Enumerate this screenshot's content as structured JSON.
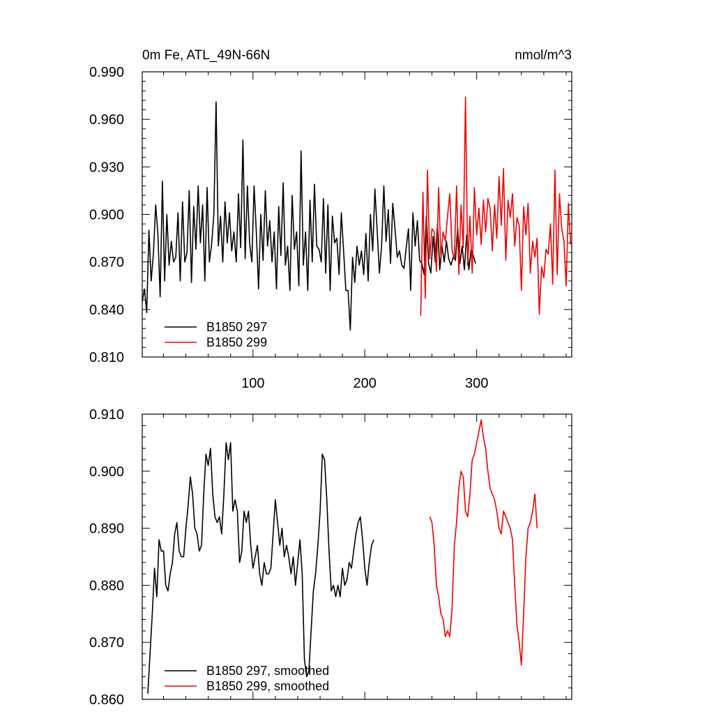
{
  "figure_title": "0m Fe, ATL_49N-66N",
  "units": "nmol/m^3",
  "chart_data": [
    {
      "type": "line",
      "title": "0m Fe, ATL_49N-66N",
      "units": "nmol/m^3",
      "xlim": [
        1,
        385
      ],
      "ylim": [
        0.81,
        0.99
      ],
      "x_ticks": [
        100,
        200,
        300
      ],
      "x_tick_labels": [
        "100",
        "200",
        "300"
      ],
      "y_ticks": [
        0.81,
        0.84,
        0.87,
        0.9,
        0.93,
        0.96,
        0.99
      ],
      "y_tick_labels": [
        "0.810",
        "0.840",
        "0.870",
        "0.900",
        "0.930",
        "0.960",
        "0.990"
      ],
      "legend_position": "bottom-left",
      "series": [
        {
          "name": "B1850 297",
          "color": "#000000",
          "x_start": 1,
          "x_step": 2,
          "values": [
            0.845,
            0.853,
            0.838,
            0.89,
            0.858,
            0.875,
            0.906,
            0.887,
            0.848,
            0.921,
            0.858,
            0.9,
            0.868,
            0.883,
            0.87,
            0.873,
            0.901,
            0.858,
            0.908,
            0.87,
            0.876,
            0.915,
            0.857,
            0.905,
            0.878,
            0.918,
            0.882,
            0.906,
            0.858,
            0.917,
            0.87,
            0.881,
            0.9,
            0.971,
            0.88,
            0.899,
            0.87,
            0.908,
            0.882,
            0.901,
            0.877,
            0.889,
            0.87,
            0.913,
            0.879,
            0.947,
            0.872,
            0.918,
            0.882,
            0.87,
            0.918,
            0.889,
            0.853,
            0.9,
            0.871,
            0.915,
            0.88,
            0.896,
            0.87,
            0.889,
            0.853,
            0.905,
            0.874,
            0.92,
            0.868,
            0.88,
            0.852,
            0.912,
            0.878,
            0.889,
            0.855,
            0.94,
            0.868,
            0.889,
            0.852,
            0.909,
            0.87,
            0.919,
            0.88,
            0.878,
            0.87,
            0.91,
            0.863,
            0.906,
            0.852,
            0.899,
            0.882,
            0.885,
            0.862,
            0.901,
            0.877,
            0.852,
            0.852,
            0.827,
            0.873,
            0.857,
            0.88,
            0.868,
            0.877,
            0.862,
            0.888,
            0.858,
            0.9,
            0.877,
            0.916,
            0.89,
            0.863,
            0.88,
            0.918,
            0.883,
            0.903,
            0.869,
            0.907,
            0.891,
            0.873,
            0.877,
            0.868,
            0.866,
            0.879,
            0.891,
            0.852,
            0.901,
            0.88,
            0.896,
            0.871,
            0.869,
            0.862,
            0.899,
            0.869,
            0.863,
            0.886,
            0.87,
            0.894,
            0.865,
            0.88,
            0.87,
            0.883,
            0.872,
            0.868,
            0.873,
            0.871,
            0.892,
            0.869,
            0.88,
            0.865,
            0.887,
            0.865,
            0.878,
            0.874,
            0.869
          ]
        },
        {
          "name": "B1850 299",
          "color": "#ee0000",
          "x_start": 250,
          "x_step": 2,
          "values": [
            0.836,
            0.914,
            0.847,
            0.928,
            0.872,
            0.891,
            0.889,
            0.864,
            0.917,
            0.873,
            0.889,
            0.883,
            0.899,
            0.913,
            0.877,
            0.872,
            0.918,
            0.862,
            0.906,
            0.879,
            0.974,
            0.868,
            0.899,
            0.863,
            0.917,
            0.887,
            0.904,
            0.881,
            0.909,
            0.889,
            0.91,
            0.904,
            0.877,
            0.906,
            0.885,
            0.924,
            0.893,
            0.929,
            0.871,
            0.909,
            0.898,
            0.913,
            0.88,
            0.898,
            0.893,
            0.852,
            0.905,
            0.887,
            0.907,
            0.863,
            0.883,
            0.873,
            0.885,
            0.837,
            0.867,
            0.86,
            0.878,
            0.875,
            0.894,
            0.856,
            0.928,
            0.862,
            0.913,
            0.891,
            0.883,
            0.855,
            0.907,
            0.881
          ]
        }
      ]
    },
    {
      "type": "line",
      "title": "",
      "xlim": [
        1,
        385
      ],
      "ylim": [
        0.86,
        0.91
      ],
      "x_ticks": [
        100,
        200,
        300
      ],
      "y_ticks": [
        0.86,
        0.87,
        0.88,
        0.89,
        0.9,
        0.91
      ],
      "y_tick_labels": [
        "0.860",
        "0.870",
        "0.880",
        "0.890",
        "0.900",
        "0.910"
      ],
      "legend_position": "bottom-left",
      "series": [
        {
          "name": "B1850 297, smoothed",
          "color": "#000000",
          "x_start": 6,
          "x_step": 2,
          "values": [
            0.861,
            0.868,
            0.875,
            0.883,
            0.878,
            0.888,
            0.886,
            0.886,
            0.88,
            0.879,
            0.882,
            0.884,
            0.889,
            0.891,
            0.886,
            0.885,
            0.885,
            0.89,
            0.894,
            0.899,
            0.896,
            0.89,
            0.889,
            0.886,
            0.887,
            0.896,
            0.903,
            0.901,
            0.904,
            0.896,
            0.892,
            0.891,
            0.892,
            0.889,
            0.896,
            0.905,
            0.902,
            0.905,
            0.893,
            0.895,
            0.893,
            0.884,
            0.886,
            0.893,
            0.891,
            0.893,
            0.887,
            0.883,
            0.885,
            0.887,
            0.882,
            0.88,
            0.884,
            0.882,
            0.882,
            0.883,
            0.889,
            0.895,
            0.891,
            0.887,
            0.89,
            0.885,
            0.887,
            0.885,
            0.882,
            0.885,
            0.88,
            0.884,
            0.888,
            0.882,
            0.867,
            0.864,
            0.865,
            0.872,
            0.879,
            0.882,
            0.887,
            0.893,
            0.903,
            0.902,
            0.895,
            0.886,
            0.879,
            0.88,
            0.878,
            0.88,
            0.878,
            0.883,
            0.88,
            0.881,
            0.884,
            0.883,
            0.886,
            0.889,
            0.891,
            0.892,
            0.888,
            0.883,
            0.88,
            0.884,
            0.887,
            0.888
          ]
        },
        {
          "name": "B1850 299, smoothed",
          "color": "#ee0000",
          "x_start": 258,
          "x_step": 2,
          "values": [
            0.892,
            0.891,
            0.887,
            0.88,
            0.878,
            0.875,
            0.874,
            0.871,
            0.872,
            0.871,
            0.876,
            0.887,
            0.891,
            0.897,
            0.9,
            0.899,
            0.893,
            0.892,
            0.896,
            0.902,
            0.903,
            0.905,
            0.907,
            0.909,
            0.906,
            0.904,
            0.9,
            0.897,
            0.896,
            0.895,
            0.893,
            0.89,
            0.889,
            0.893,
            0.892,
            0.891,
            0.89,
            0.888,
            0.88,
            0.873,
            0.87,
            0.866,
            0.875,
            0.885,
            0.89,
            0.891,
            0.893,
            0.896,
            0.89
          ]
        }
      ]
    }
  ]
}
